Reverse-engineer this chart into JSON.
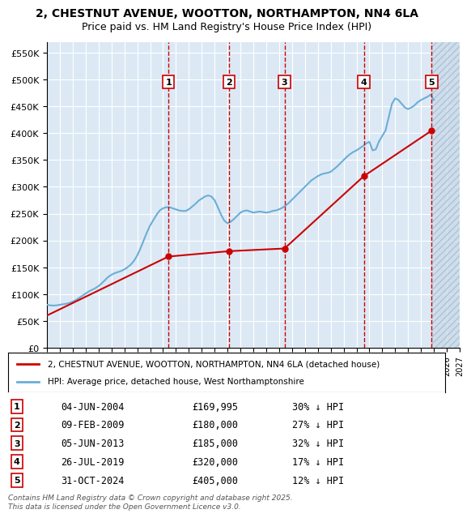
{
  "title_line1": "2, CHESTNUT AVENUE, WOOTTON, NORTHAMPTON, NN4 6LA",
  "title_line2": "Price paid vs. HM Land Registry's House Price Index (HPI)",
  "ylabel": "",
  "background_color": "#ffffff",
  "plot_bg_color": "#dce9f5",
  "grid_color": "#ffffff",
  "hpi_color": "#6baed6",
  "price_color": "#cc0000",
  "transaction_color": "#cc0000",
  "dashed_color": "#cc0000",
  "hatch_color": "#b0c4de",
  "yticks": [
    0,
    50000,
    100000,
    150000,
    200000,
    250000,
    300000,
    350000,
    400000,
    450000,
    500000,
    550000
  ],
  "ytick_labels": [
    "£0",
    "£50K",
    "£100K",
    "£150K",
    "£200K",
    "£250K",
    "£300K",
    "£350K",
    "£400K",
    "£450K",
    "£500K",
    "£550K"
  ],
  "xmin": 1995.0,
  "xmax": 2027.0,
  "ymin": 0,
  "ymax": 570000,
  "transactions": [
    {
      "num": 1,
      "date": "04-JUN-2004",
      "x": 2004.42,
      "price": 169995,
      "pct": "30%",
      "label": "£169,995"
    },
    {
      "num": 2,
      "date": "09-FEB-2009",
      "x": 2009.11,
      "price": 180000,
      "pct": "27%",
      "label": "£180,000"
    },
    {
      "num": 3,
      "date": "05-JUN-2013",
      "x": 2013.42,
      "price": 185000,
      "pct": "32%",
      "label": "£185,000"
    },
    {
      "num": 4,
      "date": "26-JUL-2019",
      "x": 2019.57,
      "price": 320000,
      "pct": "17%",
      "label": "£320,000"
    },
    {
      "num": 5,
      "date": "31-OCT-2024",
      "x": 2024.83,
      "price": 405000,
      "pct": "12%",
      "label": "£405,000"
    }
  ],
  "legend_line1": "2, CHESTNUT AVENUE, WOOTTON, NORTHAMPTON, NN4 6LA (detached house)",
  "legend_line2": "HPI: Average price, detached house, West Northamptonshire",
  "footer": "Contains HM Land Registry data © Crown copyright and database right 2025.\nThis data is licensed under the Open Government Licence v3.0.",
  "hpi_data": {
    "years": [
      1995.0,
      1995.25,
      1995.5,
      1995.75,
      1996.0,
      1996.25,
      1996.5,
      1996.75,
      1997.0,
      1997.25,
      1997.5,
      1997.75,
      1998.0,
      1998.25,
      1998.5,
      1998.75,
      1999.0,
      1999.25,
      1999.5,
      1999.75,
      2000.0,
      2000.25,
      2000.5,
      2000.75,
      2001.0,
      2001.25,
      2001.5,
      2001.75,
      2002.0,
      2002.25,
      2002.5,
      2002.75,
      2003.0,
      2003.25,
      2003.5,
      2003.75,
      2004.0,
      2004.25,
      2004.5,
      2004.75,
      2005.0,
      2005.25,
      2005.5,
      2005.75,
      2006.0,
      2006.25,
      2006.5,
      2006.75,
      2007.0,
      2007.25,
      2007.5,
      2007.75,
      2008.0,
      2008.25,
      2008.5,
      2008.75,
      2009.0,
      2009.25,
      2009.5,
      2009.75,
      2010.0,
      2010.25,
      2010.5,
      2010.75,
      2011.0,
      2011.25,
      2011.5,
      2011.75,
      2012.0,
      2012.25,
      2012.5,
      2012.75,
      2013.0,
      2013.25,
      2013.5,
      2013.75,
      2014.0,
      2014.25,
      2014.5,
      2014.75,
      2015.0,
      2015.25,
      2015.5,
      2015.75,
      2016.0,
      2016.25,
      2016.5,
      2016.75,
      2017.0,
      2017.25,
      2017.5,
      2017.75,
      2018.0,
      2018.25,
      2018.5,
      2018.75,
      2019.0,
      2019.25,
      2019.5,
      2019.75,
      2020.0,
      2020.25,
      2020.5,
      2020.75,
      2021.0,
      2021.25,
      2021.5,
      2021.75,
      2022.0,
      2022.25,
      2022.5,
      2022.75,
      2023.0,
      2023.25,
      2023.5,
      2023.75,
      2024.0,
      2024.25,
      2024.5,
      2024.75,
      2025.0
    ],
    "values": [
      80000,
      79000,
      78500,
      79000,
      80000,
      81000,
      82000,
      83500,
      86000,
      89000,
      93000,
      97000,
      101000,
      105000,
      108000,
      111000,
      115000,
      120000,
      126000,
      132000,
      136000,
      139000,
      141000,
      143000,
      146000,
      150000,
      155000,
      162000,
      172000,
      185000,
      200000,
      215000,
      228000,
      238000,
      248000,
      256000,
      260000,
      262000,
      262000,
      260000,
      258000,
      256000,
      255000,
      255000,
      258000,
      263000,
      268000,
      274000,
      278000,
      282000,
      284000,
      282000,
      275000,
      262000,
      248000,
      237000,
      232000,
      235000,
      240000,
      246000,
      252000,
      255000,
      256000,
      254000,
      252000,
      253000,
      254000,
      253000,
      252000,
      253000,
      255000,
      256000,
      258000,
      261000,
      265000,
      270000,
      276000,
      282000,
      288000,
      294000,
      300000,
      306000,
      312000,
      316000,
      320000,
      323000,
      325000,
      326000,
      328000,
      333000,
      338000,
      344000,
      350000,
      356000,
      361000,
      365000,
      368000,
      372000,
      376000,
      381000,
      384000,
      368000,
      370000,
      385000,
      395000,
      405000,
      430000,
      455000,
      465000,
      462000,
      455000,
      448000,
      445000,
      448000,
      452000,
      458000,
      462000,
      465000,
      468000,
      472000,
      462000
    ]
  },
  "price_data": {
    "years": [
      1995.0,
      2004.42,
      2009.11,
      2013.42,
      2019.57,
      2024.83
    ],
    "values": [
      60000,
      169995,
      180000,
      185000,
      320000,
      405000
    ]
  }
}
